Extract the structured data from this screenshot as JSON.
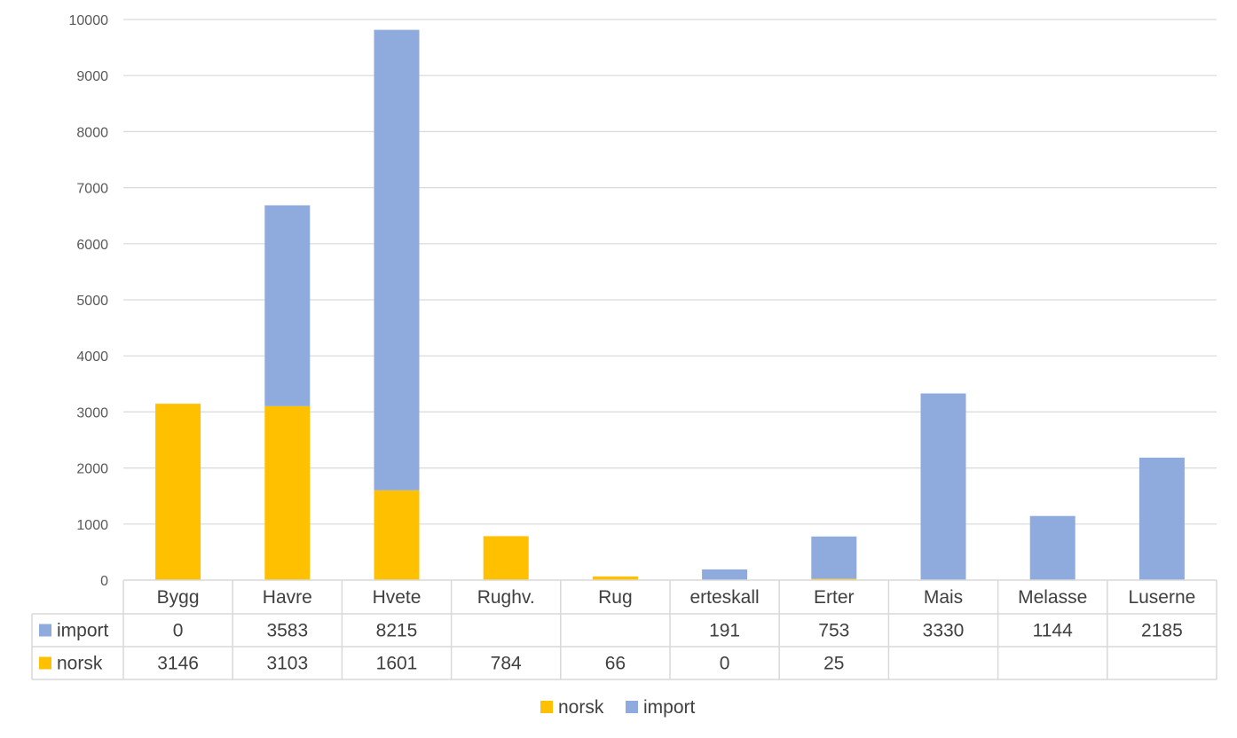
{
  "chart_data": {
    "type": "bar",
    "stacked": true,
    "title": "",
    "xlabel": "",
    "ylabel": "",
    "ylim": [
      0,
      10000
    ],
    "yticks": [
      0,
      1000,
      2000,
      3000,
      4000,
      5000,
      6000,
      7000,
      8000,
      9000,
      10000
    ],
    "grid": true,
    "legend_position": "bottom",
    "data_table": true,
    "categories": [
      "Bygg",
      "Havre",
      "Hvete",
      "Rughv.",
      "Rug",
      "erteskall",
      "Erter",
      "Mais",
      "Melasse",
      "Luserne"
    ],
    "series": [
      {
        "name": "norsk",
        "color": "#FFC000",
        "values": [
          3146,
          3103,
          1601,
          784,
          66,
          0,
          25,
          null,
          null,
          null
        ]
      },
      {
        "name": "import",
        "color": "#8FAADC",
        "values": [
          0,
          3583,
          8215,
          null,
          null,
          191,
          753,
          3330,
          1144,
          2185
        ]
      }
    ],
    "table_rows": [
      "import",
      "norsk"
    ],
    "legend_order": [
      "norsk",
      "import"
    ]
  }
}
